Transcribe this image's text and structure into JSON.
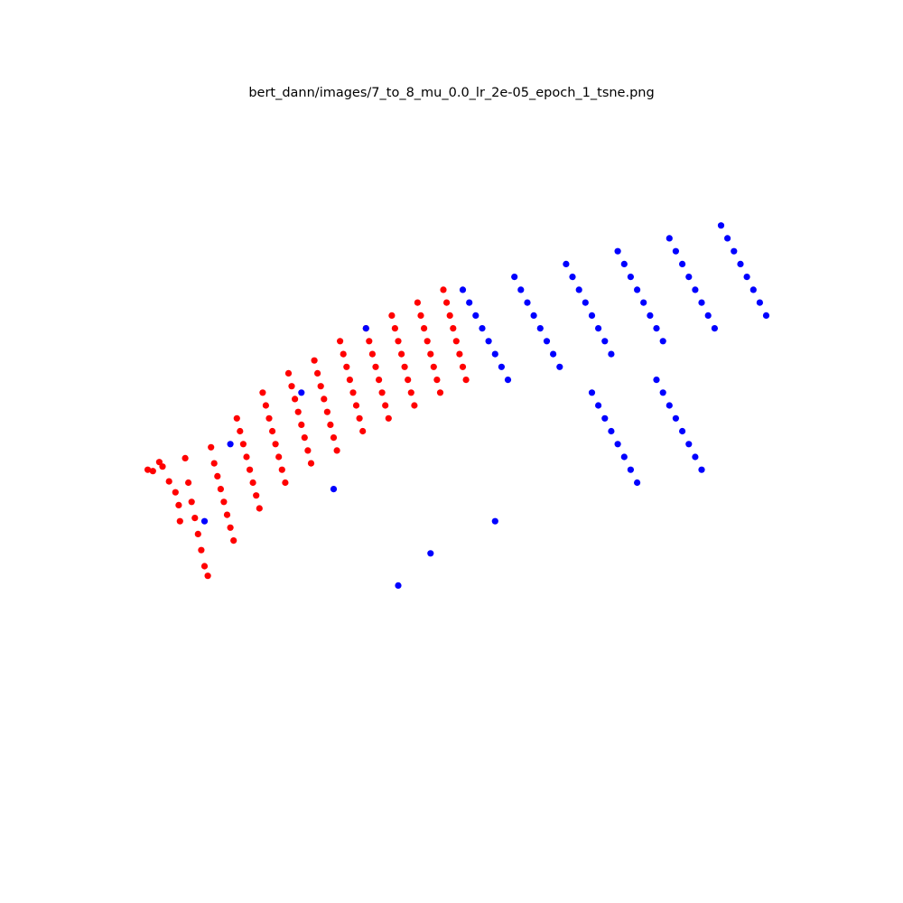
{
  "chart_data": {
    "type": "scatter",
    "title": "bert_dann/images/7_to_8_mu_0.0_lr_2e-05_epoch_1_tsne.png",
    "xlabel": "",
    "ylabel": "",
    "axes_visible": false,
    "grid": false,
    "legend": "none",
    "xlim": [
      0,
      100
    ],
    "ylim": [
      0,
      100
    ],
    "colors": {
      "red": "#ff0000",
      "blue": "#0000ff"
    },
    "series": [
      {
        "color": "#ff0000",
        "points": [
          [
            1.2,
            48.0
          ],
          [
            2.0,
            47.8
          ],
          [
            3.0,
            49.2
          ],
          [
            3.5,
            48.5
          ],
          [
            4.5,
            46.2
          ],
          [
            5.5,
            44.5
          ],
          [
            6.0,
            42.5
          ],
          [
            6.2,
            40.0
          ],
          [
            7.0,
            49.8
          ],
          [
            7.5,
            46.0
          ],
          [
            8.0,
            43.0
          ],
          [
            8.5,
            40.5
          ],
          [
            9.0,
            38.0
          ],
          [
            9.5,
            35.5
          ],
          [
            10.0,
            33.0
          ],
          [
            10.5,
            31.5
          ],
          [
            11.0,
            51.5
          ],
          [
            11.5,
            49.0
          ],
          [
            12.0,
            47.0
          ],
          [
            12.5,
            45.0
          ],
          [
            13.0,
            43.0
          ],
          [
            13.5,
            41.0
          ],
          [
            14.0,
            39.0
          ],
          [
            14.5,
            37.0
          ],
          [
            15.0,
            56.0
          ],
          [
            15.5,
            54.0
          ],
          [
            16.0,
            52.0
          ],
          [
            16.5,
            50.0
          ],
          [
            17.0,
            48.0
          ],
          [
            17.5,
            46.0
          ],
          [
            18.0,
            44.0
          ],
          [
            18.5,
            42.0
          ],
          [
            19.0,
            60.0
          ],
          [
            19.5,
            58.0
          ],
          [
            20.0,
            56.0
          ],
          [
            20.5,
            54.0
          ],
          [
            21.0,
            52.0
          ],
          [
            21.5,
            50.0
          ],
          [
            22.0,
            48.0
          ],
          [
            22.5,
            46.0
          ],
          [
            23.0,
            63.0
          ],
          [
            23.5,
            61.0
          ],
          [
            24.0,
            59.0
          ],
          [
            24.5,
            57.0
          ],
          [
            25.0,
            55.0
          ],
          [
            25.5,
            53.0
          ],
          [
            26.0,
            51.0
          ],
          [
            26.5,
            49.0
          ],
          [
            27.0,
            65.0
          ],
          [
            27.5,
            63.0
          ],
          [
            28.0,
            61.0
          ],
          [
            28.5,
            59.0
          ],
          [
            29.0,
            57.0
          ],
          [
            29.5,
            55.0
          ],
          [
            30.0,
            53.0
          ],
          [
            30.5,
            51.0
          ],
          [
            31.0,
            68.0
          ],
          [
            31.5,
            66.0
          ],
          [
            32.0,
            64.0
          ],
          [
            32.5,
            62.0
          ],
          [
            33.0,
            60.0
          ],
          [
            33.5,
            58.0
          ],
          [
            34.0,
            56.0
          ],
          [
            34.5,
            54.0
          ],
          [
            35.0,
            70.0
          ],
          [
            35.5,
            68.0
          ],
          [
            36.0,
            66.0
          ],
          [
            36.5,
            64.0
          ],
          [
            37.0,
            62.0
          ],
          [
            37.5,
            60.0
          ],
          [
            38.0,
            58.0
          ],
          [
            38.5,
            56.0
          ],
          [
            39.0,
            72.0
          ],
          [
            39.5,
            70.0
          ],
          [
            40.0,
            68.0
          ],
          [
            40.5,
            66.0
          ],
          [
            41.0,
            64.0
          ],
          [
            41.5,
            62.0
          ],
          [
            42.0,
            60.0
          ],
          [
            42.5,
            58.0
          ],
          [
            43.0,
            74.0
          ],
          [
            43.5,
            72.0
          ],
          [
            44.0,
            70.0
          ],
          [
            44.5,
            68.0
          ],
          [
            45.0,
            66.0
          ],
          [
            45.5,
            64.0
          ],
          [
            46.0,
            62.0
          ],
          [
            46.5,
            60.0
          ],
          [
            47.0,
            76.0
          ],
          [
            47.5,
            74.0
          ],
          [
            48.0,
            72.0
          ],
          [
            48.5,
            70.0
          ],
          [
            49.0,
            68.0
          ],
          [
            49.5,
            66.0
          ],
          [
            50.0,
            64.0
          ],
          [
            50.5,
            62.0
          ]
        ]
      },
      {
        "color": "#0000ff",
        "points": [
          [
            50.0,
            76.0
          ],
          [
            51.0,
            74.0
          ],
          [
            52.0,
            72.0
          ],
          [
            53.0,
            70.0
          ],
          [
            54.0,
            68.0
          ],
          [
            55.0,
            66.0
          ],
          [
            56.0,
            64.0
          ],
          [
            57.0,
            62.0
          ],
          [
            58.0,
            78.0
          ],
          [
            59.0,
            76.0
          ],
          [
            60.0,
            74.0
          ],
          [
            61.0,
            72.0
          ],
          [
            62.0,
            70.0
          ],
          [
            63.0,
            68.0
          ],
          [
            64.0,
            66.0
          ],
          [
            65.0,
            64.0
          ],
          [
            66.0,
            80.0
          ],
          [
            67.0,
            78.0
          ],
          [
            68.0,
            76.0
          ],
          [
            69.0,
            74.0
          ],
          [
            70.0,
            72.0
          ],
          [
            71.0,
            70.0
          ],
          [
            72.0,
            68.0
          ],
          [
            73.0,
            66.0
          ],
          [
            74.0,
            82.0
          ],
          [
            75.0,
            80.0
          ],
          [
            76.0,
            78.0
          ],
          [
            77.0,
            76.0
          ],
          [
            78.0,
            74.0
          ],
          [
            79.0,
            72.0
          ],
          [
            80.0,
            70.0
          ],
          [
            81.0,
            68.0
          ],
          [
            82.0,
            84.0
          ],
          [
            83.0,
            82.0
          ],
          [
            84.0,
            80.0
          ],
          [
            85.0,
            78.0
          ],
          [
            86.0,
            76.0
          ],
          [
            87.0,
            74.0
          ],
          [
            88.0,
            72.0
          ],
          [
            89.0,
            70.0
          ],
          [
            90.0,
            86.0
          ],
          [
            91.0,
            84.0
          ],
          [
            92.0,
            82.0
          ],
          [
            93.0,
            80.0
          ],
          [
            94.0,
            78.0
          ],
          [
            95.0,
            76.0
          ],
          [
            96.0,
            74.0
          ],
          [
            97.0,
            72.0
          ],
          [
            70.0,
            60.0
          ],
          [
            71.0,
            58.0
          ],
          [
            72.0,
            56.0
          ],
          [
            73.0,
            54.0
          ],
          [
            74.0,
            52.0
          ],
          [
            75.0,
            50.0
          ],
          [
            76.0,
            48.0
          ],
          [
            77.0,
            46.0
          ],
          [
            80.0,
            62.0
          ],
          [
            81.0,
            60.0
          ],
          [
            82.0,
            58.0
          ],
          [
            83.0,
            56.0
          ],
          [
            84.0,
            54.0
          ],
          [
            85.0,
            52.0
          ],
          [
            86.0,
            50.0
          ],
          [
            87.0,
            48.0
          ],
          [
            10.0,
            40.0
          ],
          [
            14.0,
            52.0
          ],
          [
            25.0,
            60.0
          ],
          [
            30.0,
            45.0
          ],
          [
            35.0,
            70.0
          ],
          [
            40.0,
            30.0
          ],
          [
            45.0,
            35.0
          ],
          [
            55.0,
            40.0
          ]
        ]
      }
    ]
  }
}
